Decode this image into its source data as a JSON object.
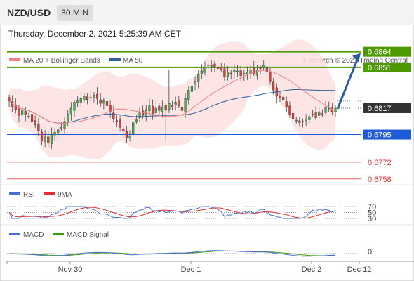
{
  "header": {
    "symbol": "NZD/USD",
    "timeframe": "30 MIN",
    "timestamp": "Thursday, December 2, 2021 5:25:39 AM CET"
  },
  "legend": {
    "ma20_label": "MA 20 + Bollinger Bands",
    "ma50_label": "MA 50",
    "credit": "Research © 2021 Trading Central"
  },
  "colors": {
    "bull": "#4caf50",
    "bear": "#d84444",
    "ma20": "#f08080",
    "ma50": "#2f5f9e",
    "band_fill": "#fde0e0",
    "resistance": "#4c9a00",
    "support": "#1e5bd8",
    "target_line": "#e06060",
    "arrow": "#2c5aa0",
    "current": "#333333",
    "rsi": "#4a6fd4",
    "rsi_ma": "#e03030",
    "macd": "#4a6fd4",
    "macd_signal": "#3a9a10"
  },
  "chart_data": [
    {
      "type": "candlestick",
      "title": "NZD/USD",
      "ylim": [
        0.6752,
        0.6872
      ],
      "x_ticks": [
        "Nov 30",
        "Dec 1",
        "Dec 2",
        "Dec 12"
      ],
      "levels": [
        {
          "value": 0.6864,
          "label": "0.6864",
          "kind": "resistance"
        },
        {
          "value": 0.6851,
          "label": "0.6851",
          "kind": "resistance"
        },
        {
          "value": 0.6817,
          "label": "0.6817",
          "kind": "current"
        },
        {
          "value": 0.6795,
          "label": "0.6795",
          "kind": "support"
        },
        {
          "value": 0.6772,
          "label": "0.6772",
          "kind": "target"
        },
        {
          "value": 0.6758,
          "label": "0.6758",
          "kind": "target"
        }
      ],
      "closes": [
        0.6823,
        0.6818,
        0.6816,
        0.6811,
        0.6815,
        0.6812,
        0.681,
        0.6806,
        0.6803,
        0.6798,
        0.679,
        0.6793,
        0.6788,
        0.6795,
        0.6797,
        0.6799,
        0.6801,
        0.6806,
        0.6812,
        0.6817,
        0.6822,
        0.6823,
        0.6825,
        0.6827,
        0.6824,
        0.6826,
        0.6828,
        0.6825,
        0.6821,
        0.6823,
        0.6819,
        0.6814,
        0.6808,
        0.6806,
        0.6801,
        0.6798,
        0.6792,
        0.6794,
        0.6805,
        0.6808,
        0.6813,
        0.6811,
        0.6816,
        0.6819,
        0.6812,
        0.6817,
        0.6815,
        0.6818,
        0.6816,
        0.6821,
        0.6818,
        0.6822,
        0.6819,
        0.6815,
        0.6825,
        0.6832,
        0.6835,
        0.6839,
        0.6845,
        0.6848,
        0.6851,
        0.6853,
        0.6852,
        0.6851,
        0.685,
        0.6849,
        0.6843,
        0.6847,
        0.6846,
        0.6849,
        0.6848,
        0.6844,
        0.6846,
        0.6847,
        0.6849,
        0.6846,
        0.6849,
        0.685,
        0.6853,
        0.6847,
        0.6839,
        0.6832,
        0.6827,
        0.6826,
        0.6824,
        0.6818,
        0.6812,
        0.6808,
        0.6807,
        0.6805,
        0.6806,
        0.6808,
        0.681,
        0.6812,
        0.6809,
        0.6814,
        0.6812,
        0.6818,
        0.6817,
        0.6814,
        0.6817
      ],
      "rsi": {
        "label": "RSI",
        "ma_label": "9MA",
        "levels": [
          70,
          50,
          30
        ]
      },
      "macd": {
        "label": "MACD",
        "signal_label": "MACD Signal",
        "levels": [
          0
        ]
      }
    }
  ]
}
